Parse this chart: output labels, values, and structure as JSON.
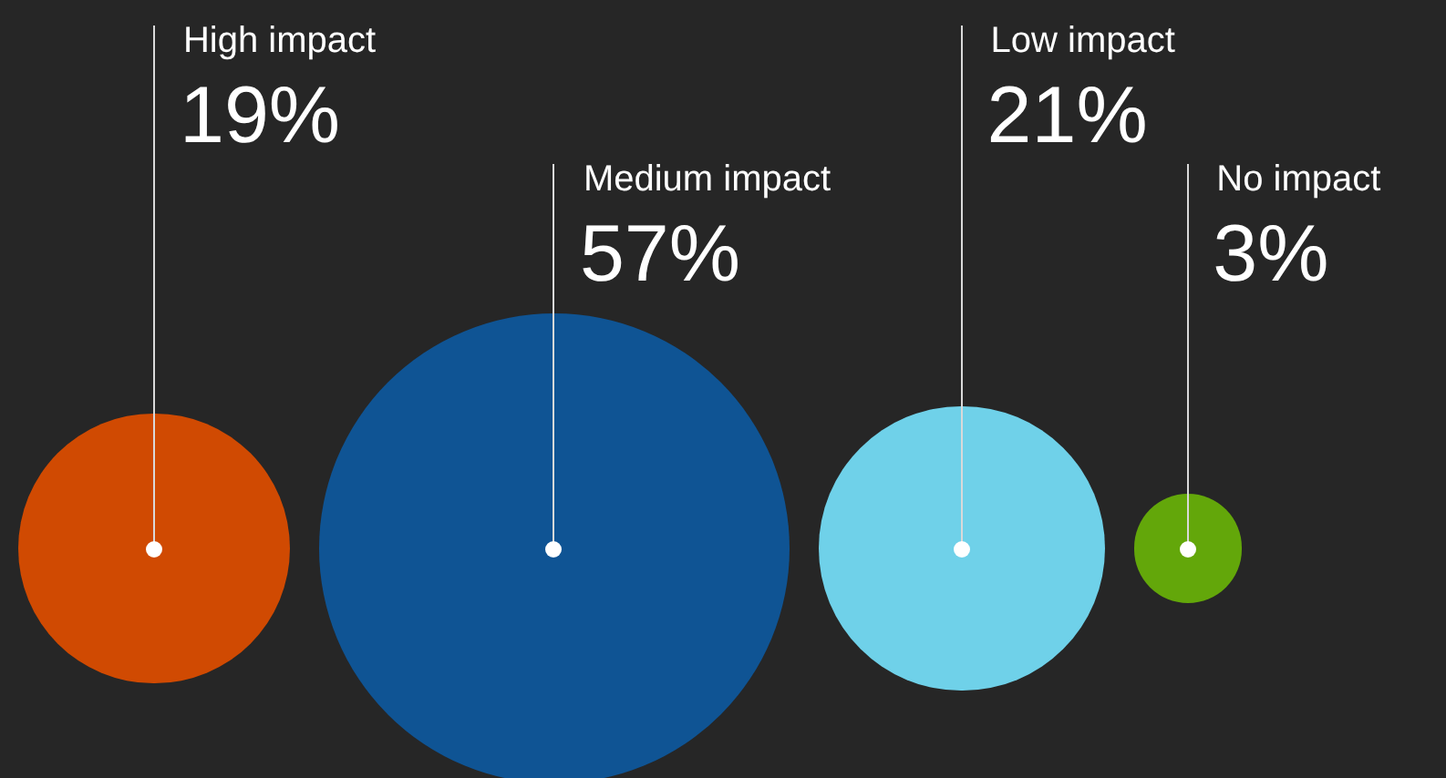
{
  "chart_data": {
    "type": "other",
    "categories": [
      "High impact",
      "Medium impact",
      "Low impact",
      "No impact"
    ],
    "values": [
      19,
      57,
      21,
      3
    ],
    "colors": [
      "#d04a02",
      "#0f5494",
      "#6fd1e9",
      "#63a70a"
    ],
    "value_labels": [
      "19%",
      "57%",
      "21%",
      "3%"
    ]
  }
}
